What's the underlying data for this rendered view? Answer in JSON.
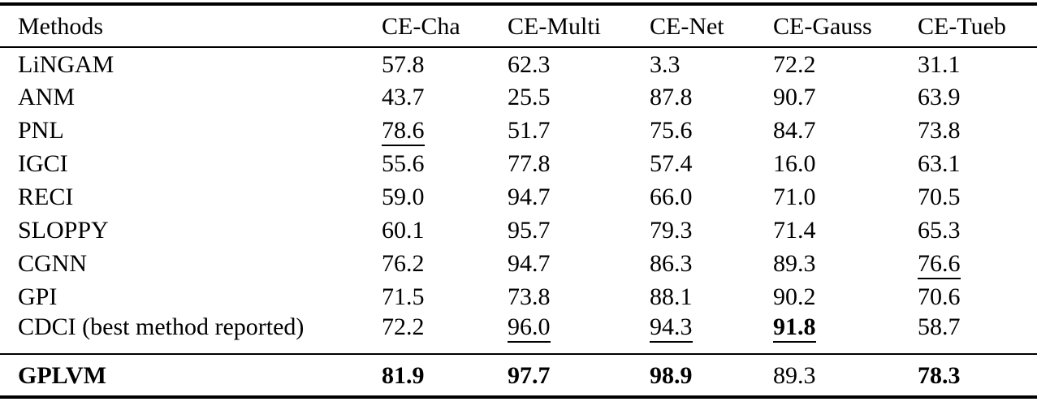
{
  "table": {
    "columns": [
      {
        "label": "Methods"
      },
      {
        "label": "CE-Cha"
      },
      {
        "label": "CE-Multi"
      },
      {
        "label": "CE-Net"
      },
      {
        "label": "CE-Gauss"
      },
      {
        "label": "CE-Tueb"
      }
    ],
    "rows": [
      {
        "method": "LiNGAM",
        "cells": [
          {
            "text": "57.8"
          },
          {
            "text": "62.3"
          },
          {
            "text": "3.3"
          },
          {
            "text": "72.2"
          },
          {
            "text": "31.1"
          }
        ]
      },
      {
        "method": "ANM",
        "cells": [
          {
            "text": "43.7"
          },
          {
            "text": "25.5"
          },
          {
            "text": "87.8"
          },
          {
            "text": "90.7"
          },
          {
            "text": "63.9"
          }
        ]
      },
      {
        "method": "PNL",
        "cells": [
          {
            "text": "78.6",
            "underline": true
          },
          {
            "text": "51.7"
          },
          {
            "text": "75.6"
          },
          {
            "text": "84.7"
          },
          {
            "text": "73.8"
          }
        ]
      },
      {
        "method": "IGCI",
        "cells": [
          {
            "text": "55.6"
          },
          {
            "text": "77.8"
          },
          {
            "text": "57.4"
          },
          {
            "text": "16.0"
          },
          {
            "text": "63.1"
          }
        ]
      },
      {
        "method": "RECI",
        "cells": [
          {
            "text": "59.0"
          },
          {
            "text": "94.7"
          },
          {
            "text": "66.0"
          },
          {
            "text": "71.0"
          },
          {
            "text": "70.5"
          }
        ]
      },
      {
        "method": "SLOPPY",
        "cells": [
          {
            "text": "60.1"
          },
          {
            "text": "95.7"
          },
          {
            "text": "79.3"
          },
          {
            "text": "71.4"
          },
          {
            "text": "65.3"
          }
        ]
      },
      {
        "method": "CGNN",
        "cells": [
          {
            "text": "76.2"
          },
          {
            "text": "94.7"
          },
          {
            "text": "86.3"
          },
          {
            "text": "89.3"
          },
          {
            "text": "76.6",
            "underline": true
          }
        ]
      },
      {
        "method": "GPI",
        "cells": [
          {
            "text": "71.5"
          },
          {
            "text": "73.8"
          },
          {
            "text": "88.1"
          },
          {
            "text": "90.2"
          },
          {
            "text": "70.6"
          }
        ]
      },
      {
        "method": "CDCI (best method reported)",
        "cells": [
          {
            "text": "72.2"
          },
          {
            "text": "96.0",
            "underline": true
          },
          {
            "text": "94.3",
            "underline": true
          },
          {
            "text": "91.8",
            "underline": true,
            "bold": true
          },
          {
            "text": "58.7"
          }
        ]
      },
      {
        "method": "GPLVM",
        "bold": true,
        "cells": [
          {
            "text": "81.9",
            "bold": true
          },
          {
            "text": "97.7",
            "bold": true
          },
          {
            "text": "98.9",
            "bold": true
          },
          {
            "text": "89.3"
          },
          {
            "text": "78.3",
            "bold": true
          }
        ]
      }
    ],
    "text_color": "#000000",
    "background_color": "#ffffff"
  }
}
